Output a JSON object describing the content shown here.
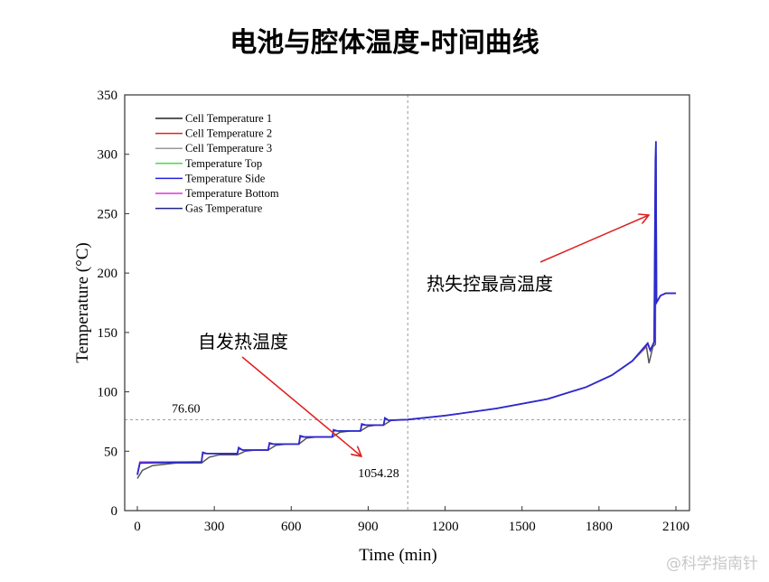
{
  "chart_data": {
    "type": "line",
    "title": "电池与腔体温度-时间曲线",
    "xlabel": "Time (min)",
    "ylabel": "Temperature (°C)",
    "xlim": [
      -50,
      2150
    ],
    "ylim": [
      0,
      350
    ],
    "xticks": [
      0,
      300,
      600,
      900,
      1200,
      1500,
      1800,
      2100
    ],
    "yticks": [
      0,
      50,
      100,
      150,
      200,
      250,
      300,
      350
    ],
    "grid": false,
    "legend_position": "top-left",
    "legend": [
      {
        "name": "Cell Temperature 1",
        "color": "#222222"
      },
      {
        "name": "Cell Temperature 2",
        "color": "#e02020"
      },
      {
        "name": "Cell Temperature 3",
        "color": "#999999"
      },
      {
        "name": "Temperature Top",
        "color": "#44dd44"
      },
      {
        "name": "Temperature Side",
        "color": "#2222dd"
      },
      {
        "name": "Temperature Bottom",
        "color": "#dd33dd"
      },
      {
        "name": "Gas Temperature",
        "color": "#222288"
      }
    ],
    "series": [
      {
        "name": "Cell Temperature 1",
        "color": "#555555",
        "points": [
          [
            0,
            27
          ],
          [
            20,
            34
          ],
          [
            60,
            38
          ],
          [
            150,
            40
          ],
          [
            250,
            40
          ],
          [
            280,
            45
          ],
          [
            320,
            47
          ],
          [
            390,
            47
          ],
          [
            420,
            50
          ],
          [
            460,
            51
          ],
          [
            510,
            51
          ],
          [
            540,
            55
          ],
          [
            580,
            56
          ],
          [
            630,
            56
          ],
          [
            660,
            61
          ],
          [
            700,
            62
          ],
          [
            760,
            62
          ],
          [
            790,
            66
          ],
          [
            830,
            67
          ],
          [
            870,
            67
          ],
          [
            900,
            71
          ],
          [
            930,
            72
          ],
          [
            960,
            72
          ],
          [
            990,
            76
          ],
          [
            1054,
            76.6
          ],
          [
            1200,
            80
          ],
          [
            1400,
            86
          ],
          [
            1600,
            94
          ],
          [
            1750,
            104
          ],
          [
            1850,
            114
          ],
          [
            1930,
            126
          ],
          [
            1985,
            138
          ],
          [
            1995,
            124
          ],
          [
            2010,
            138
          ],
          [
            2020,
            140
          ],
          [
            2022,
            300
          ],
          [
            2025,
            176
          ],
          [
            2040,
            181
          ],
          [
            2060,
            183
          ],
          [
            2100,
            183
          ]
        ]
      },
      {
        "name": "Temperature Bottom",
        "color": "#dd33dd",
        "points": [
          [
            0,
            31
          ],
          [
            10,
            41
          ],
          [
            250,
            41
          ],
          [
            255,
            48
          ],
          [
            270,
            48
          ],
          [
            390,
            48
          ],
          [
            395,
            52
          ],
          [
            410,
            51
          ],
          [
            510,
            51
          ],
          [
            515,
            56
          ],
          [
            530,
            56
          ],
          [
            630,
            56
          ],
          [
            635,
            62
          ],
          [
            650,
            62
          ],
          [
            760,
            62
          ],
          [
            765,
            67
          ],
          [
            780,
            67
          ],
          [
            870,
            67
          ],
          [
            875,
            72
          ],
          [
            890,
            72
          ],
          [
            960,
            72
          ],
          [
            965,
            77
          ],
          [
            980,
            76
          ],
          [
            1054,
            76.6
          ],
          [
            1200,
            80
          ],
          [
            1400,
            86
          ],
          [
            1600,
            94
          ],
          [
            1750,
            104
          ],
          [
            1850,
            114
          ],
          [
            1930,
            126
          ],
          [
            1990,
            140
          ],
          [
            2000,
            135
          ],
          [
            2015,
            142
          ],
          [
            2020,
            290
          ],
          [
            2024,
            175
          ],
          [
            2040,
            181
          ],
          [
            2060,
            183
          ],
          [
            2100,
            183
          ]
        ]
      },
      {
        "name": "Gas Temperature",
        "color": "#2a2acc",
        "points": [
          [
            0,
            30
          ],
          [
            10,
            40
          ],
          [
            250,
            41
          ],
          [
            255,
            49
          ],
          [
            270,
            48
          ],
          [
            390,
            48
          ],
          [
            395,
            53
          ],
          [
            410,
            51
          ],
          [
            510,
            51
          ],
          [
            515,
            57
          ],
          [
            530,
            56
          ],
          [
            630,
            56
          ],
          [
            635,
            63
          ],
          [
            650,
            62
          ],
          [
            760,
            62
          ],
          [
            765,
            68
          ],
          [
            780,
            67
          ],
          [
            870,
            67
          ],
          [
            875,
            73
          ],
          [
            890,
            72
          ],
          [
            960,
            72
          ],
          [
            965,
            78
          ],
          [
            980,
            76
          ],
          [
            1054,
            76.6
          ],
          [
            1200,
            80
          ],
          [
            1400,
            86
          ],
          [
            1600,
            94
          ],
          [
            1750,
            104
          ],
          [
            1850,
            114
          ],
          [
            1930,
            126
          ],
          [
            1990,
            141
          ],
          [
            2000,
            135
          ],
          [
            2015,
            142
          ],
          [
            2020,
            295
          ],
          [
            2022,
            311
          ],
          [
            2024,
            175
          ],
          [
            2040,
            181
          ],
          [
            2060,
            183
          ],
          [
            2100,
            183
          ]
        ]
      }
    ],
    "reference_lines": {
      "y": 76.6,
      "y_label": "76.60",
      "x": 1054.28,
      "x_label": "1054.28"
    },
    "annotations": [
      {
        "text": "自发热温度",
        "arrow_color": "#e02020"
      },
      {
        "text": "热失控最高温度",
        "arrow_color": "#e02020"
      }
    ]
  },
  "watermark": "@科学指南针"
}
